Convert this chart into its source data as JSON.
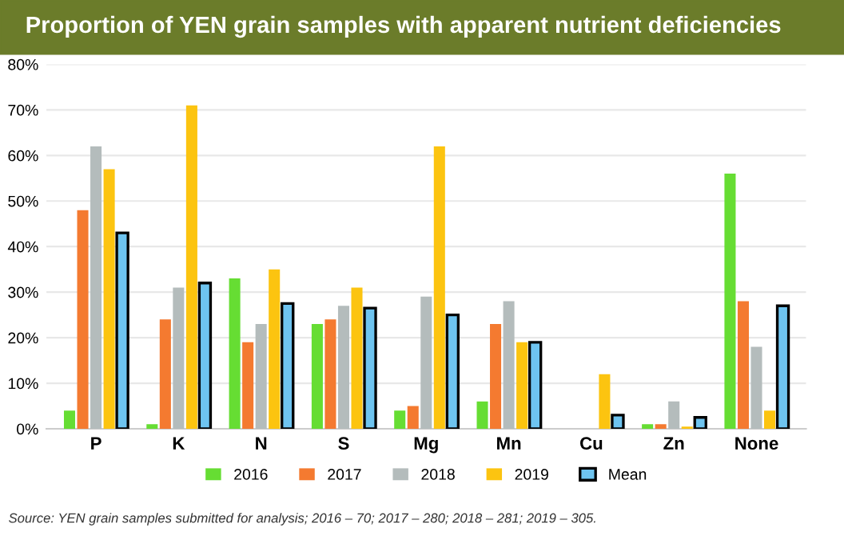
{
  "chart_data": {
    "type": "bar",
    "title": "Proportion of YEN grain samples with apparent nutrient deficiencies",
    "categories": [
      "P",
      "K",
      "N",
      "S",
      "Mg",
      "Mn",
      "Cu",
      "Zn",
      "None"
    ],
    "series": [
      {
        "name": "2016",
        "color": "#66dd33",
        "values": [
          4,
          1,
          33,
          23,
          4,
          6,
          0,
          1,
          56
        ]
      },
      {
        "name": "2017",
        "color": "#f47a30",
        "values": [
          48,
          24,
          19,
          24,
          5,
          23,
          0,
          1,
          28
        ]
      },
      {
        "name": "2018",
        "color": "#b4bcbc",
        "values": [
          62,
          31,
          23,
          27,
          29,
          28,
          0,
          6,
          18
        ]
      },
      {
        "name": "2019",
        "color": "#fcc410",
        "values": [
          57,
          71,
          35,
          31,
          62,
          19,
          12,
          0.5,
          4
        ]
      },
      {
        "name": "Mean",
        "color": "#6ec4f0",
        "values": [
          43,
          32,
          27.5,
          26.5,
          25,
          19,
          3,
          2.5,
          27
        ]
      }
    ],
    "ylim": [
      0,
      80
    ],
    "yticks": [
      {
        "value": 0,
        "label": "0%"
      },
      {
        "value": 10,
        "label": "10%"
      },
      {
        "value": 20,
        "label": "20%"
      },
      {
        "value": 30,
        "label": "30%"
      },
      {
        "value": 40,
        "label": "40%"
      },
      {
        "value": 50,
        "label": "50%"
      },
      {
        "value": 60,
        "label": "60%"
      },
      {
        "value": 70,
        "label": "70%"
      },
      {
        "value": 80,
        "label": "80%"
      }
    ],
    "grid": "y",
    "legend": "bottom",
    "annotations": [
      "Source: YEN grain samples submitted for analysis; 2016 – 70; 2017 – 280; 2018 – 281; 2019 – 305."
    ]
  }
}
